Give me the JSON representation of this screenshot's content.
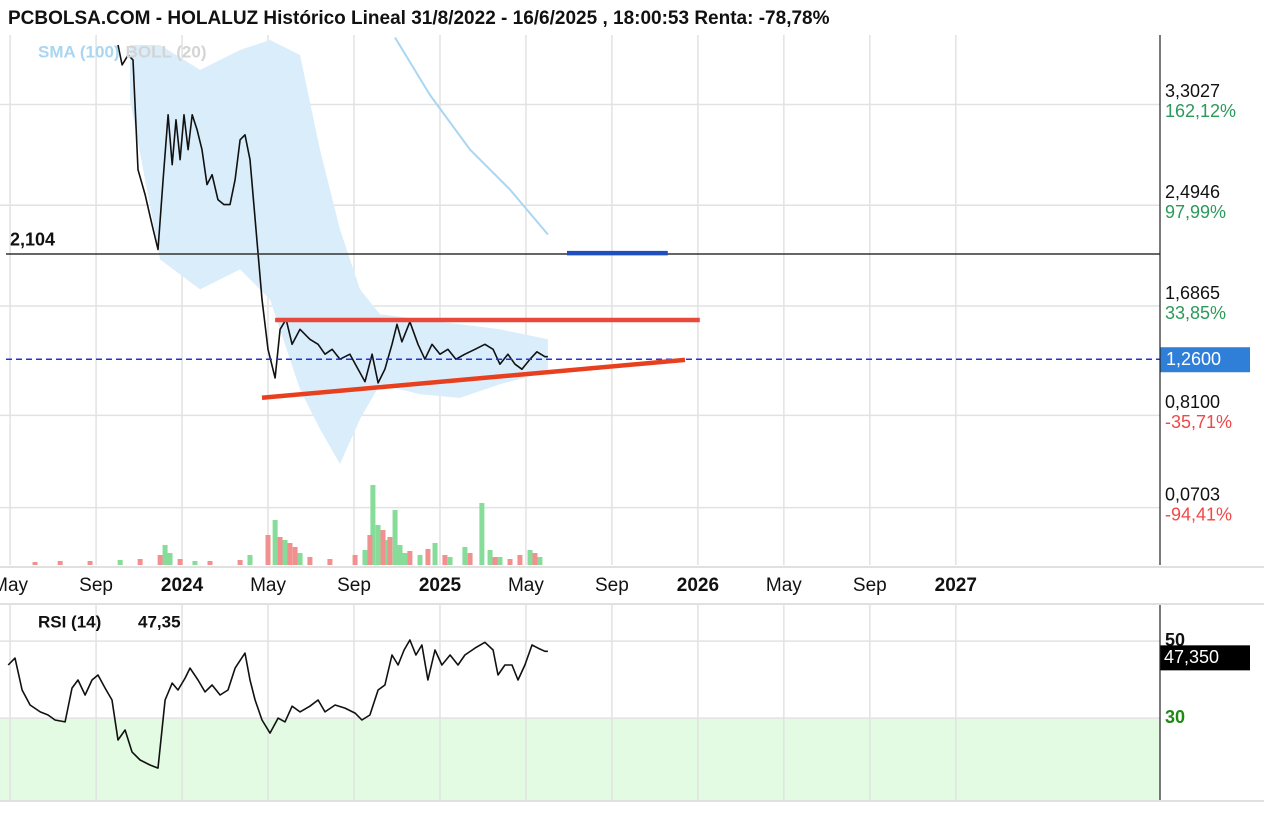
{
  "chart_data": [
    {
      "type": "line",
      "title": "PCBOLSA.COM - HOLALUZ Histórico Lineal 31/8/2022 - 16/6/2025 , 18:00:53 Renta: -78,78%",
      "xlim": [
        3.53,
        57.5
      ],
      "xticks": [
        {
          "value": 4,
          "label": "May"
        },
        {
          "value": 8,
          "label": "Sep"
        },
        {
          "value": 12,
          "label": "2024"
        },
        {
          "value": 16,
          "label": "May"
        },
        {
          "value": 20,
          "label": "Sep"
        },
        {
          "value": 24,
          "label": "2025"
        },
        {
          "value": 28,
          "label": "May"
        },
        {
          "value": 32,
          "label": "Sep"
        },
        {
          "value": 36,
          "label": "2026"
        },
        {
          "value": 40,
          "label": "May"
        },
        {
          "value": 44,
          "label": "Sep"
        },
        {
          "value": 48,
          "label": "2027"
        }
      ],
      "ylim": [
        -0.39,
        3.86
      ],
      "yticks": [
        {
          "value": 3.3027,
          "label": "3,3027"
        },
        {
          "value": 2.4946,
          "label": "2,4946"
        },
        {
          "value": 1.6865,
          "label": "1,6865"
        },
        {
          "value": 0.81,
          "label": "0,8100"
        },
        {
          "value": 0.0703,
          "label": "0,0703"
        }
      ],
      "ytick_changes": [
        {
          "value": 162.12,
          "label": "162,12%"
        },
        {
          "value": 97.99,
          "label": "97,99%"
        },
        {
          "value": 33.85,
          "label": "33,85%"
        },
        {
          "value": -35.71,
          "label": "-35,71%"
        },
        {
          "value": -94.41,
          "label": "-94,41%"
        }
      ],
      "grid": true,
      "series": [
        {
          "color": "#111111",
          "x": [
            9.02,
            9.21,
            9.49,
            9.72,
            9.95,
            10.28,
            10.6,
            10.88,
            11.12,
            11.35,
            11.54,
            11.72,
            11.91,
            12.09,
            12.28,
            12.47,
            12.7,
            12.93,
            13.16,
            13.4,
            13.67,
            13.95,
            14.23,
            14.47,
            14.7,
            14.93,
            15.16,
            15.44,
            15.72,
            16,
            16.33,
            16.56,
            16.84,
            17.12,
            17.49,
            17.95,
            18.33,
            18.65,
            18.98,
            19.35,
            19.81,
            20.19,
            20.51,
            20.84,
            21.12,
            21.44,
            21.77,
            22,
            22.23,
            22.6,
            22.98,
            23.3,
            23.63,
            24,
            24.37,
            24.74,
            25.16,
            25.63,
            26.09,
            26.47,
            26.79,
            27.16,
            27.49,
            27.81,
            28.19,
            28.51,
            28.88,
            29.02
          ],
          "values": [
            3.78,
            3.62,
            3.7,
            3.66,
            2.78,
            2.58,
            2.34,
            2.14,
            2.7,
            3.22,
            2.82,
            3.18,
            2.86,
            3.22,
            2.94,
            3.22,
            3.1,
            2.94,
            2.66,
            2.74,
            2.54,
            2.5,
            2.5,
            2.7,
            3.02,
            3.06,
            2.86,
            2.3,
            1.74,
            1.34,
            1.11,
            1.5,
            1.58,
            1.38,
            1.5,
            1.42,
            1.38,
            1.3,
            1.34,
            1.26,
            1.3,
            1.18,
            1.08,
            1.3,
            1.07,
            1.18,
            1.38,
            1.54,
            1.4,
            1.56,
            1.38,
            1.26,
            1.38,
            1.3,
            1.34,
            1.26,
            1.3,
            1.34,
            1.38,
            1.34,
            1.22,
            1.3,
            1.22,
            1.18,
            1.26,
            1.32,
            1.28,
            1.28
          ]
        },
        {
          "name": "SMA (100)",
          "color": "#a9d6f2",
          "x": [
            21.91,
            23.53,
            25.4,
            27.26,
            29.02
          ],
          "values": [
            3.84,
            3.38,
            2.94,
            2.62,
            2.26
          ]
        },
        {
          "name": "BOLL (20)",
          "type": "band",
          "color": "#d9edfb",
          "legend_color": "#d4d4d4",
          "x": [
            9.58,
            10.98,
            12.84,
            14.7,
            16.09,
            17.49,
            18.42,
            19.35,
            20.28,
            21.21,
            23.07,
            24.93,
            26.79,
            29.02
          ],
          "upper": [
            3.78,
            3.78,
            3.58,
            3.74,
            3.82,
            3.7,
            2.94,
            2.3,
            1.82,
            1.62,
            1.58,
            1.54,
            1.5,
            1.42
          ],
          "lower": [
            3.34,
            2.06,
            1.82,
            1.98,
            1.74,
            1.02,
            0.7,
            0.42,
            0.78,
            1.06,
            0.98,
            0.95,
            1.06,
            1.16
          ]
        }
      ],
      "volume": [
        {
          "color": "#86dc98",
          "x": [
            9.12,
            11.21,
            11.44,
            12.6,
            15.16,
            16.33,
            16.79,
            17.49,
            20.51,
            20.88,
            21.12,
            21.44,
            21.91,
            22.14,
            22.37,
            23.07,
            23.77,
            24.47,
            25.16,
            25.95,
            26.33,
            26.79,
            28.19,
            28.65
          ],
          "values": [
            5,
            20,
            12,
            4,
            10,
            45,
            25,
            12,
            15,
            80,
            40,
            25,
            55,
            20,
            12,
            10,
            22,
            8,
            18,
            62,
            15,
            8,
            15,
            8
          ]
        },
        {
          "color": "#f29090",
          "x": [
            5.16,
            6.33,
            7.72,
            10.05,
            10.98,
            11.91,
            13.3,
            14.7,
            16,
            16.56,
            17.02,
            17.26,
            17.95,
            18.88,
            20.05,
            20.74,
            21.35,
            21.67,
            22.6,
            23.44,
            24.23,
            25.4,
            26.56,
            27.26,
            27.72,
            28.42
          ],
          "values": [
            3,
            4,
            4,
            6,
            10,
            6,
            4,
            5,
            30,
            28,
            22,
            18,
            8,
            6,
            10,
            30,
            35,
            28,
            14,
            16,
            10,
            12,
            8,
            6,
            10,
            12
          ]
        }
      ],
      "reference_lines": [
        {
          "value": 2.104,
          "label": "2,104",
          "color": "#333333",
          "style": "solid"
        },
        {
          "value": 1.26,
          "label": "1,2600",
          "color": "#2233dd",
          "style": "dashed",
          "box_color": "#2f7fd8"
        }
      ],
      "trendlines": [
        {
          "x": [
            16.33,
            36.09
          ],
          "values": [
            1.575,
            1.575
          ],
          "color": "#e8493c"
        },
        {
          "x": [
            15.72,
            35.4
          ],
          "values": [
            0.951,
            1.255
          ],
          "color": "#e8401f"
        },
        {
          "x": [
            29.91,
            34.6
          ],
          "values": [
            2.111,
            2.111
          ],
          "color": "#1f4fbf"
        }
      ]
    },
    {
      "type": "line",
      "title": "RSI (14)",
      "current": {
        "value": 47.35,
        "label": "47,35"
      },
      "value_box": {
        "value": 47.35,
        "label": "47,350"
      },
      "xlim": [
        3.53,
        57.5
      ],
      "ylim": [
        8.7,
        59.4
      ],
      "yticks": [
        30,
        50
      ],
      "ytick_colors": [
        "#1d8a12",
        "#111111"
      ],
      "zone": {
        "below": 30,
        "color": "#e3fbe3"
      },
      "grid": true,
      "series": [
        {
          "color": "#111111",
          "x": [
            3.91,
            4.23,
            4.56,
            4.93,
            5.4,
            5.77,
            6.09,
            6.56,
            6.88,
            7.16,
            7.49,
            7.81,
            8.09,
            8.42,
            8.74,
            9.02,
            9.35,
            9.67,
            10.05,
            10.51,
            10.88,
            11.21,
            11.54,
            11.81,
            12.14,
            12.37,
            12.74,
            13.07,
            13.4,
            13.77,
            14.14,
            14.47,
            14.7,
            14.93,
            15.16,
            15.4,
            15.72,
            16.09,
            16.47,
            16.79,
            17.12,
            17.49,
            17.95,
            18.33,
            18.65,
            19.12,
            19.58,
            20.05,
            20.37,
            20.74,
            21.12,
            21.44,
            21.77,
            22.05,
            22.33,
            22.6,
            22.88,
            23.16,
            23.44,
            23.77,
            24.09,
            24.47,
            24.84,
            25.16,
            25.63,
            26.09,
            26.47,
            26.7,
            27.02,
            27.35,
            27.63,
            27.95,
            28.28,
            28.56,
            28.88,
            29.02
          ],
          "values": [
            43.8,
            45.6,
            37.3,
            33.4,
            31.6,
            30.8,
            29.5,
            29,
            37.8,
            39.9,
            36,
            39.9,
            41.2,
            37.8,
            34.7,
            24.3,
            26.9,
            21.2,
            19.1,
            17.8,
            17,
            34.7,
            39.1,
            37.3,
            40.4,
            43,
            39.9,
            36.8,
            38.6,
            36,
            37.3,
            43,
            45,
            46.9,
            39.9,
            34.7,
            29.5,
            26.1,
            30,
            29,
            33.1,
            31.6,
            33.1,
            34.7,
            31.6,
            33.4,
            32.6,
            31.3,
            29.5,
            30.8,
            37.3,
            38.6,
            46.4,
            43.8,
            47.7,
            50.3,
            46.4,
            49,
            39.9,
            47.7,
            43.8,
            46.4,
            43.8,
            46.4,
            48.2,
            49.7,
            47.7,
            41.2,
            43.8,
            43.8,
            39.9,
            43.8,
            49,
            48.2,
            47.35,
            47.35
          ]
        }
      ]
    }
  ]
}
